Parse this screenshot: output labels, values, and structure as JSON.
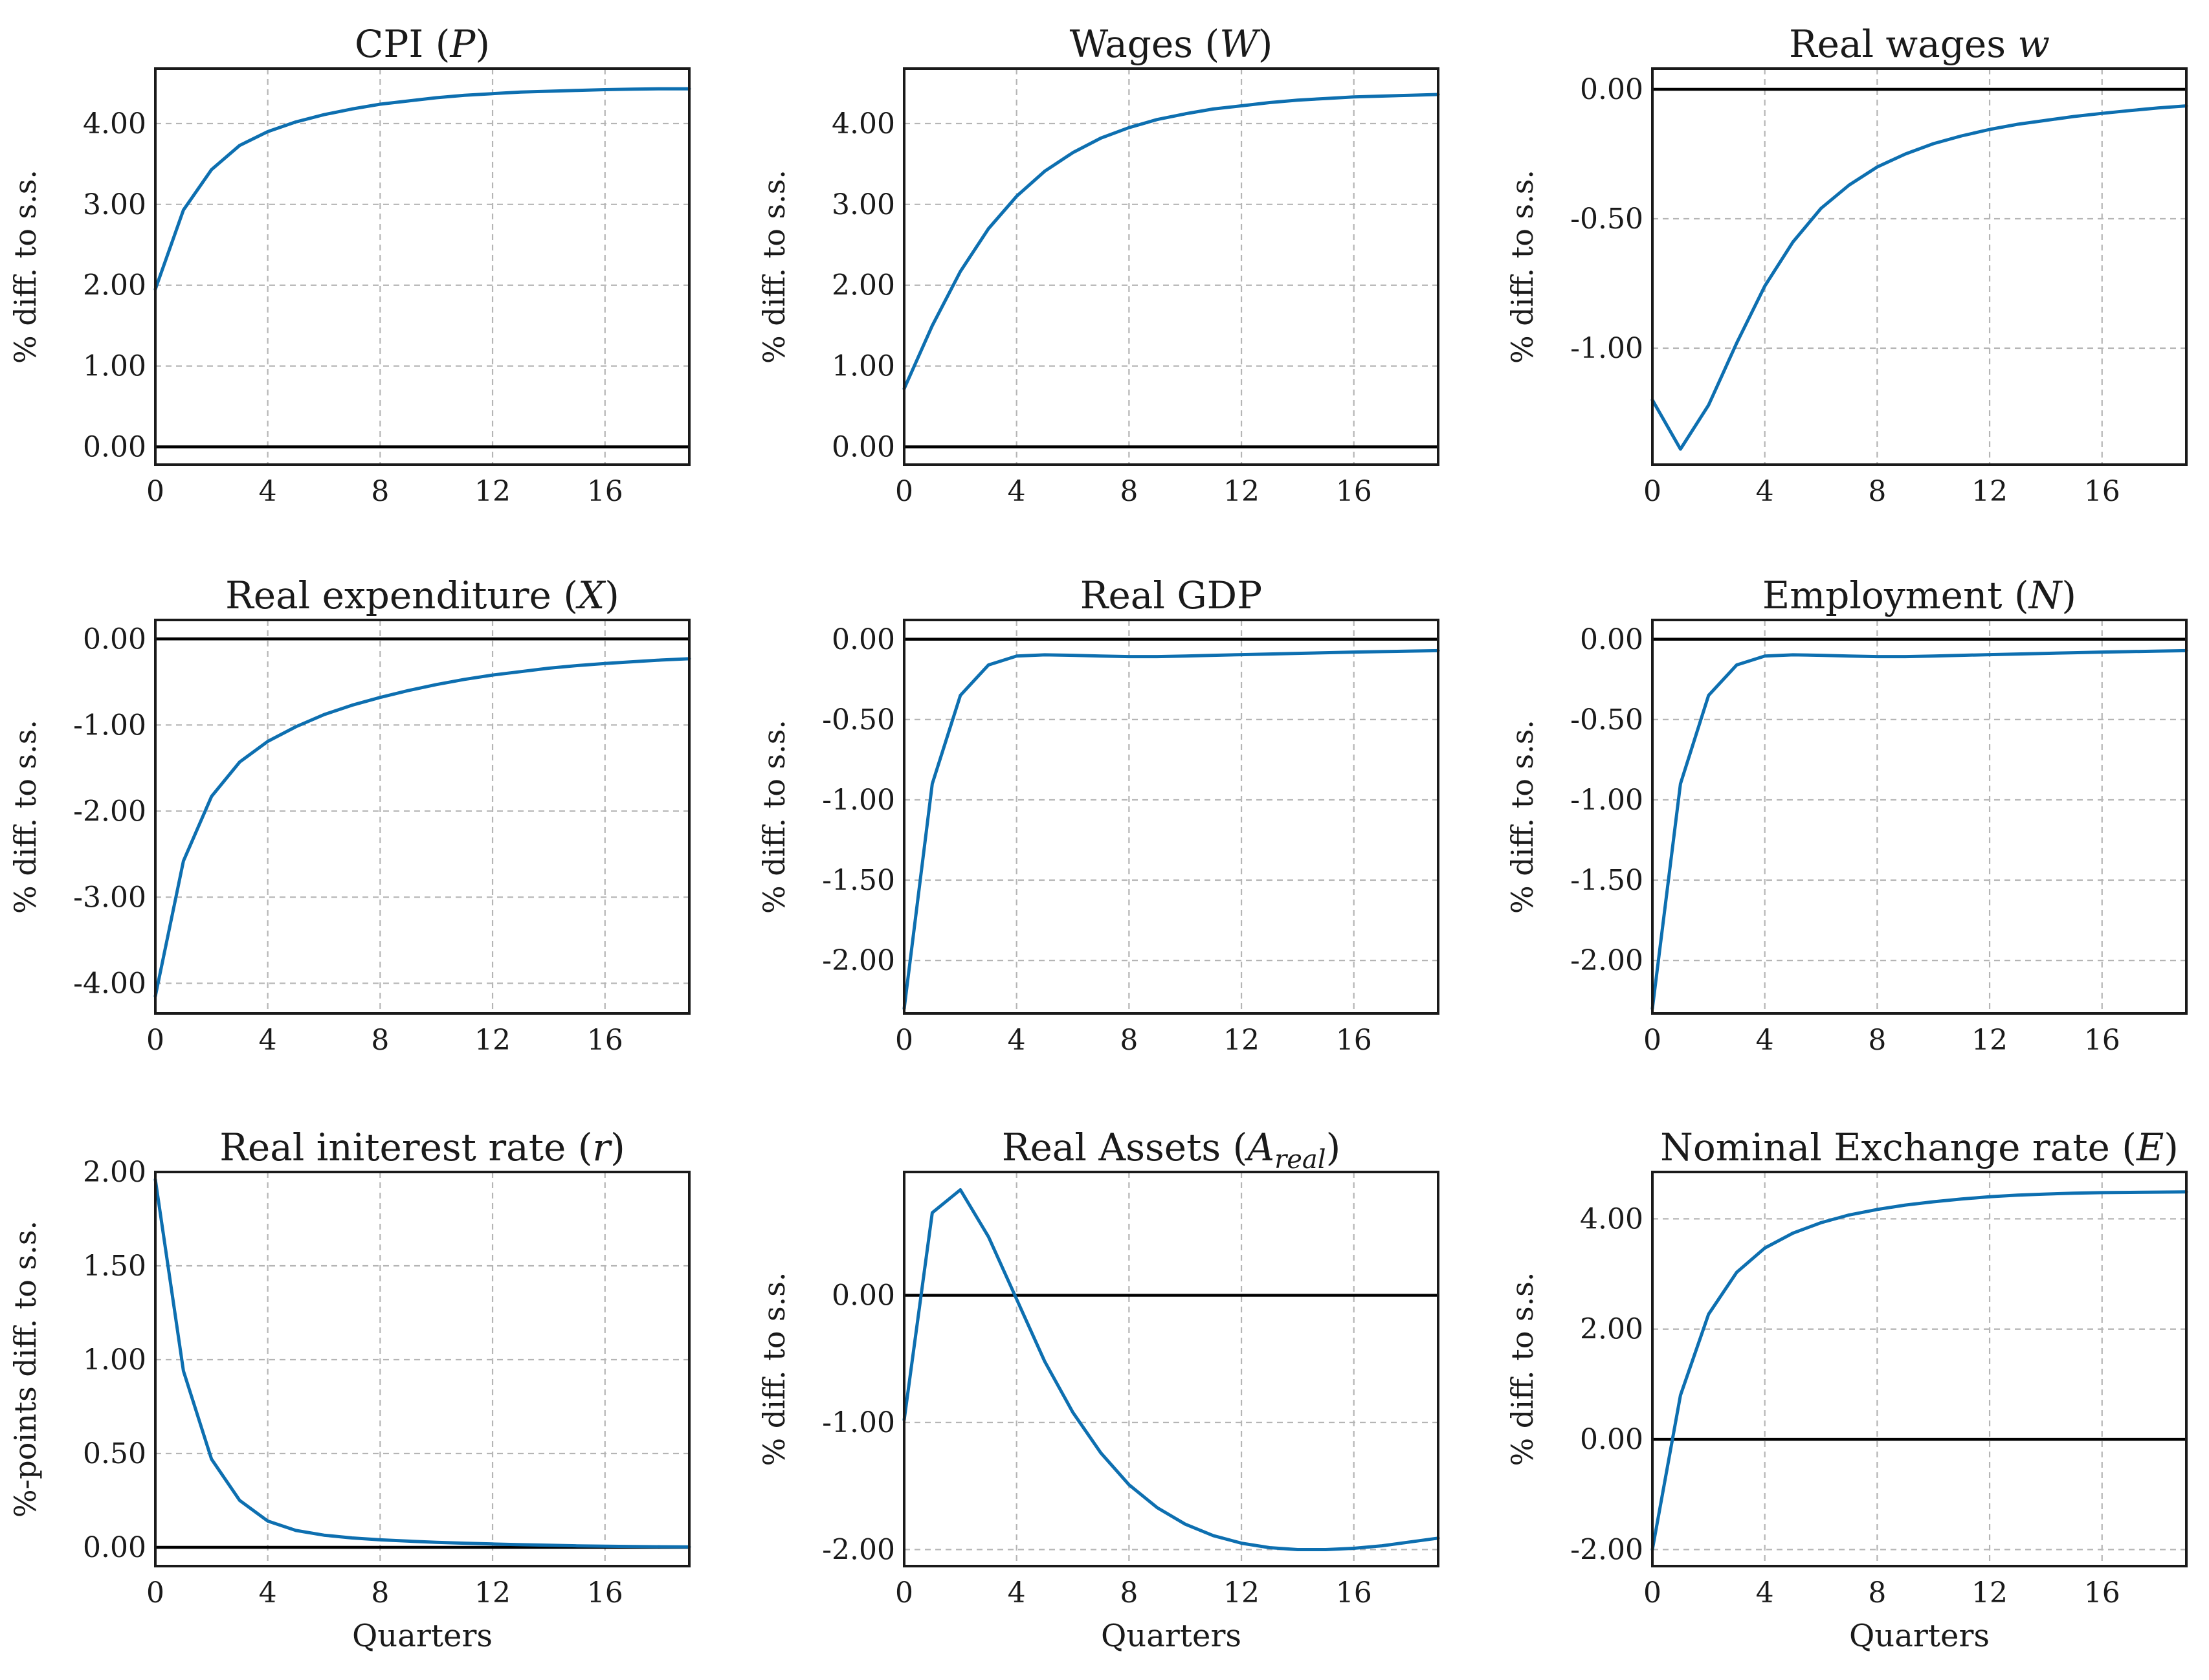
{
  "chart_data": [
    {
      "type": "line",
      "title": "CPI (P)",
      "ylabel": "% diff. to s.s.",
      "xlabel": "",
      "xlim": [
        0,
        19
      ],
      "ylim": [
        -0.22,
        4.68
      ],
      "xticks": [
        0,
        4,
        8,
        12,
        16
      ],
      "xtick_labels": [
        "0",
        "4",
        "8",
        "12",
        "16"
      ],
      "yticks": [
        0,
        1,
        2,
        3,
        4
      ],
      "ytick_labels": [
        "0.00",
        "1.00",
        "2.00",
        "3.00",
        "4.00"
      ],
      "grid": true,
      "reference_line": 0,
      "line_color": "#0d6fb0",
      "x": [
        0,
        1,
        2,
        3,
        4,
        5,
        6,
        7,
        8,
        9,
        10,
        11,
        12,
        13,
        14,
        15,
        16,
        17,
        18,
        19
      ],
      "y": [
        1.95,
        2.93,
        3.43,
        3.73,
        3.9,
        4.02,
        4.11,
        4.18,
        4.24,
        4.28,
        4.32,
        4.35,
        4.37,
        4.39,
        4.4,
        4.41,
        4.42,
        4.425,
        4.43,
        4.43
      ]
    },
    {
      "type": "line",
      "title": "Wages (W)",
      "ylabel": "% diff. to s.s.",
      "xlabel": "",
      "xlim": [
        0,
        19
      ],
      "ylim": [
        -0.22,
        4.68
      ],
      "xticks": [
        0,
        4,
        8,
        12,
        16
      ],
      "xtick_labels": [
        "0",
        "4",
        "8",
        "12",
        "16"
      ],
      "yticks": [
        0,
        1,
        2,
        3,
        4
      ],
      "ytick_labels": [
        "0.00",
        "1.00",
        "2.00",
        "3.00",
        "4.00"
      ],
      "grid": true,
      "reference_line": 0,
      "line_color": "#0d6fb0",
      "x": [
        0,
        1,
        2,
        3,
        4,
        5,
        6,
        7,
        8,
        9,
        10,
        11,
        12,
        13,
        14,
        15,
        16,
        17,
        18,
        19
      ],
      "y": [
        0.72,
        1.5,
        2.17,
        2.7,
        3.1,
        3.41,
        3.64,
        3.82,
        3.95,
        4.05,
        4.12,
        4.18,
        4.22,
        4.26,
        4.29,
        4.31,
        4.33,
        4.34,
        4.35,
        4.36
      ]
    },
    {
      "type": "line",
      "title": "Real wages w",
      "ylabel": "% diff. to s.s.",
      "xlabel": "",
      "xlim": [
        0,
        19
      ],
      "ylim": [
        -1.45,
        0.08
      ],
      "xticks": [
        0,
        4,
        8,
        12,
        16
      ],
      "xtick_labels": [
        "0",
        "4",
        "8",
        "12",
        "16"
      ],
      "yticks": [
        -1,
        -0.5,
        0
      ],
      "ytick_labels": [
        "-1.00",
        "-0.50",
        "0.00"
      ],
      "grid": true,
      "reference_line": 0,
      "line_color": "#0d6fb0",
      "x": [
        0,
        1,
        2,
        3,
        4,
        5,
        6,
        7,
        8,
        9,
        10,
        11,
        12,
        13,
        14,
        15,
        16,
        17,
        18,
        19
      ],
      "y": [
        -1.2,
        -1.39,
        -1.22,
        -0.98,
        -0.76,
        -0.59,
        -0.46,
        -0.37,
        -0.3,
        -0.25,
        -0.21,
        -0.18,
        -0.155,
        -0.135,
        -0.12,
        -0.105,
        -0.093,
        -0.082,
        -0.072,
        -0.064
      ]
    },
    {
      "type": "line",
      "title": "Real expenditure (X)",
      "ylabel": "% diff. to s.s.",
      "xlabel": "",
      "xlim": [
        0,
        19
      ],
      "ylim": [
        -4.35,
        0.22
      ],
      "xticks": [
        0,
        4,
        8,
        12,
        16
      ],
      "xtick_labels": [
        "0",
        "4",
        "8",
        "12",
        "16"
      ],
      "yticks": [
        -4,
        -3,
        -2,
        -1,
        0
      ],
      "ytick_labels": [
        "-4.00",
        "-3.00",
        "-2.00",
        "-1.00",
        "0.00"
      ],
      "grid": true,
      "reference_line": 0,
      "line_color": "#0d6fb0",
      "x": [
        0,
        1,
        2,
        3,
        4,
        5,
        6,
        7,
        8,
        9,
        10,
        11,
        12,
        13,
        14,
        15,
        16,
        17,
        18,
        19
      ],
      "y": [
        -4.15,
        -2.58,
        -1.83,
        -1.43,
        -1.19,
        -1.02,
        -0.88,
        -0.77,
        -0.68,
        -0.6,
        -0.53,
        -0.47,
        -0.42,
        -0.38,
        -0.34,
        -0.31,
        -0.285,
        -0.265,
        -0.245,
        -0.23
      ]
    },
    {
      "type": "line",
      "title": "Real GDP",
      "ylabel": "% diff. to s.s.",
      "xlabel": "",
      "xlim": [
        0,
        19
      ],
      "ylim": [
        -2.33,
        0.12
      ],
      "xticks": [
        0,
        4,
        8,
        12,
        16
      ],
      "xtick_labels": [
        "0",
        "4",
        "8",
        "12",
        "16"
      ],
      "yticks": [
        -2,
        -1.5,
        -1,
        -0.5,
        0
      ],
      "ytick_labels": [
        "-2.00",
        "-1.50",
        "-1.00",
        "-0.50",
        "0.00"
      ],
      "grid": true,
      "reference_line": 0,
      "line_color": "#0d6fb0",
      "x": [
        0,
        1,
        2,
        3,
        4,
        5,
        6,
        7,
        8,
        9,
        10,
        11,
        12,
        13,
        14,
        15,
        16,
        17,
        18,
        19
      ],
      "y": [
        -2.3,
        -0.9,
        -0.35,
        -0.16,
        -0.105,
        -0.097,
        -0.1,
        -0.105,
        -0.108,
        -0.108,
        -0.105,
        -0.1,
        -0.096,
        -0.092,
        -0.088,
        -0.084,
        -0.08,
        -0.077,
        -0.074,
        -0.071
      ]
    },
    {
      "type": "line",
      "title": "Employment (N)",
      "ylabel": "% diff. to s.s.",
      "xlabel": "",
      "xlim": [
        0,
        19
      ],
      "ylim": [
        -2.33,
        0.12
      ],
      "xticks": [
        0,
        4,
        8,
        12,
        16
      ],
      "xtick_labels": [
        "0",
        "4",
        "8",
        "12",
        "16"
      ],
      "yticks": [
        -2,
        -1.5,
        -1,
        -0.5,
        0
      ],
      "ytick_labels": [
        "-2.00",
        "-1.50",
        "-1.00",
        "-0.50",
        "0.00"
      ],
      "grid": true,
      "reference_line": 0,
      "line_color": "#0d6fb0",
      "x": [
        0,
        1,
        2,
        3,
        4,
        5,
        6,
        7,
        8,
        9,
        10,
        11,
        12,
        13,
        14,
        15,
        16,
        17,
        18,
        19
      ],
      "y": [
        -2.3,
        -0.9,
        -0.35,
        -0.16,
        -0.105,
        -0.097,
        -0.1,
        -0.105,
        -0.108,
        -0.108,
        -0.105,
        -0.1,
        -0.096,
        -0.092,
        -0.088,
        -0.084,
        -0.08,
        -0.077,
        -0.074,
        -0.071
      ]
    },
    {
      "type": "line",
      "title": "Real initerest rate (r)",
      "ylabel": "%-points diff. to s.s.",
      "xlabel": "Quarters",
      "xlim": [
        0,
        19
      ],
      "ylim": [
        -0.1,
        2.0
      ],
      "xticks": [
        0,
        4,
        8,
        12,
        16
      ],
      "xtick_labels": [
        "0",
        "4",
        "8",
        "12",
        "16"
      ],
      "yticks": [
        0,
        0.5,
        1,
        1.5,
        2
      ],
      "ytick_labels": [
        "0.00",
        "0.50",
        "1.00",
        "1.50",
        "2.00"
      ],
      "grid": true,
      "reference_line": 0,
      "line_color": "#0d6fb0",
      "x": [
        0,
        1,
        2,
        3,
        4,
        5,
        6,
        7,
        8,
        9,
        10,
        11,
        12,
        13,
        14,
        15,
        16,
        17,
        18,
        19
      ],
      "y": [
        1.96,
        0.94,
        0.47,
        0.25,
        0.14,
        0.09,
        0.065,
        0.05,
        0.04,
        0.033,
        0.027,
        0.022,
        0.018,
        0.014,
        0.011,
        0.008,
        0.006,
        0.004,
        0.003,
        0.002
      ]
    },
    {
      "type": "line",
      "title": "Real Assets (A_real)",
      "ylabel": "% diff. to s.s.",
      "xlabel": "Quarters",
      "xlim": [
        0,
        19
      ],
      "ylim": [
        -2.13,
        0.97
      ],
      "xticks": [
        0,
        4,
        8,
        12,
        16
      ],
      "xtick_labels": [
        "0",
        "4",
        "8",
        "12",
        "16"
      ],
      "yticks": [
        -2,
        -1,
        0
      ],
      "ytick_labels": [
        "-2.00",
        "-1.00",
        "0.00"
      ],
      "grid": true,
      "reference_line": 0,
      "line_color": "#0d6fb0",
      "x": [
        0,
        1,
        2,
        3,
        4,
        5,
        6,
        7,
        8,
        9,
        10,
        11,
        12,
        13,
        14,
        15,
        16,
        17,
        18,
        19
      ],
      "y": [
        -0.98,
        0.65,
        0.83,
        0.46,
        -0.03,
        -0.52,
        -0.92,
        -1.24,
        -1.49,
        -1.67,
        -1.8,
        -1.89,
        -1.95,
        -1.985,
        -2.0,
        -2.0,
        -1.99,
        -1.97,
        -1.94,
        -1.91
      ]
    },
    {
      "type": "line",
      "title": "Nominal Exchange rate (E)",
      "ylabel": "% diff. to s.s.",
      "xlabel": "Quarters",
      "xlim": [
        0,
        19
      ],
      "ylim": [
        -2.3,
        4.85
      ],
      "xticks": [
        0,
        4,
        8,
        12,
        16
      ],
      "xtick_labels": [
        "0",
        "4",
        "8",
        "12",
        "16"
      ],
      "yticks": [
        -2,
        0,
        2,
        4
      ],
      "ytick_labels": [
        "-2.00",
        "0.00",
        "2.00",
        "4.00"
      ],
      "grid": true,
      "reference_line": 0,
      "line_color": "#0d6fb0",
      "x": [
        0,
        1,
        2,
        3,
        4,
        5,
        6,
        7,
        8,
        9,
        10,
        11,
        12,
        13,
        14,
        15,
        16,
        17,
        18,
        19
      ],
      "y": [
        -2.0,
        0.8,
        2.27,
        3.03,
        3.47,
        3.74,
        3.93,
        4.07,
        4.17,
        4.25,
        4.31,
        4.36,
        4.4,
        4.43,
        4.45,
        4.465,
        4.475,
        4.48,
        4.485,
        4.49
      ]
    }
  ]
}
